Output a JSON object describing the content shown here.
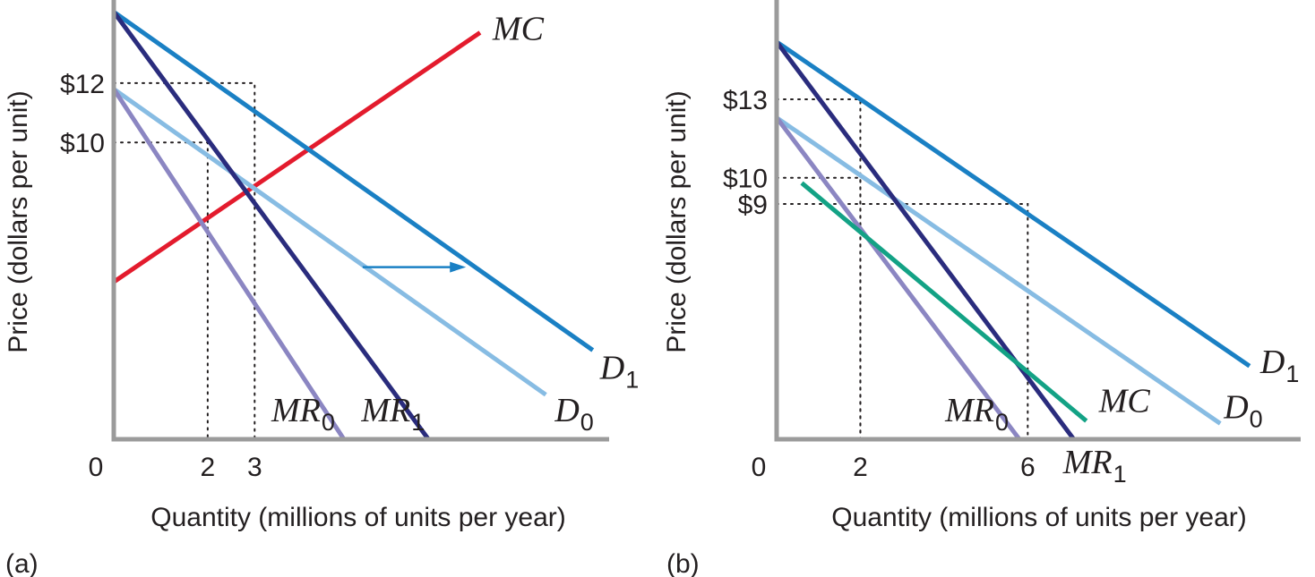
{
  "colors": {
    "D1": "#1a80c4",
    "D0": "#87bce3",
    "MR1": "#2a2c7d",
    "MR0": "#8b86c2",
    "MC_a": "#e31b2d",
    "MC_b": "#13a285",
    "axis": "#9b9b9b",
    "arrow": "#1a80c4"
  },
  "chart_data": [
    {
      "type": "line",
      "panel_label": "(a)",
      "xlabel": "Quantity (millions of units per year)",
      "ylabel": "Price (dollars per unit)",
      "origin_label": "0",
      "x_ticks": [
        {
          "value": 2,
          "label": "2"
        },
        {
          "value": 3,
          "label": "3"
        }
      ],
      "y_ticks": [
        {
          "value": 12,
          "label": "$12"
        },
        {
          "value": 10,
          "label": "$10"
        }
      ],
      "xlim": [
        0,
        10.3
      ],
      "ylim": [
        0,
        14.8
      ],
      "grid": false,
      "series": [
        {
          "key": "MC",
          "name": "MC",
          "sub": "",
          "x": [
            0,
            7.8
          ],
          "y": [
            5.3,
            13.7
          ]
        },
        {
          "key": "D1",
          "name": "D",
          "sub": "1",
          "x": [
            0,
            10.2
          ],
          "y": [
            14.4,
            3.0
          ]
        },
        {
          "key": "D0",
          "name": "D",
          "sub": "0",
          "x": [
            0,
            9.2
          ],
          "y": [
            11.8,
            1.5
          ]
        },
        {
          "key": "MR1",
          "name": "MR",
          "sub": "1",
          "x": [
            0,
            6.7
          ],
          "y": [
            14.4,
            0
          ]
        },
        {
          "key": "MR0",
          "name": "MR",
          "sub": "0",
          "x": [
            0,
            4.9
          ],
          "y": [
            11.8,
            0
          ]
        }
      ],
      "guides": [
        {
          "x": 2,
          "y": 10
        },
        {
          "x": 3,
          "y": 12
        }
      ],
      "shift_arrow": {
        "from": [
          5.3,
          5.8
        ],
        "to": [
          7.5,
          5.8
        ]
      }
    },
    {
      "type": "line",
      "panel_label": "(b)",
      "xlabel": "Quantity (millions of units per year)",
      "ylabel": "Price (dollars per unit)",
      "origin_label": "0",
      "x_ticks": [
        {
          "value": 2,
          "label": "2"
        },
        {
          "value": 6,
          "label": "6"
        }
      ],
      "y_ticks": [
        {
          "value": 13,
          "label": "$13"
        },
        {
          "value": 10,
          "label": "$10"
        },
        {
          "value": 9,
          "label": "$9"
        }
      ],
      "xlim": [
        0,
        12.5
      ],
      "ylim": [
        0,
        16.8
      ],
      "grid": false,
      "series": [
        {
          "key": "D1",
          "name": "D",
          "sub": "1",
          "x": [
            0,
            11.3
          ],
          "y": [
            15.2,
            2.8
          ]
        },
        {
          "key": "D0",
          "name": "D",
          "sub": "0",
          "x": [
            0,
            10.6
          ],
          "y": [
            12.3,
            0.6
          ]
        },
        {
          "key": "MR1",
          "name": "MR",
          "sub": "1",
          "x": [
            0,
            7.1
          ],
          "y": [
            15.2,
            0
          ]
        },
        {
          "key": "MR0",
          "name": "MR",
          "sub": "0",
          "x": [
            0,
            5.8
          ],
          "y": [
            12.3,
            0
          ]
        },
        {
          "key": "MC_b",
          "name": "MC",
          "sub": "",
          "x": [
            0.6,
            7.4
          ],
          "y": [
            9.8,
            0.7
          ]
        }
      ],
      "guides": [
        {
          "x": 2,
          "y": 13
        },
        {
          "x": 2,
          "y": 10
        },
        {
          "x": 6,
          "y": 9
        }
      ]
    }
  ]
}
